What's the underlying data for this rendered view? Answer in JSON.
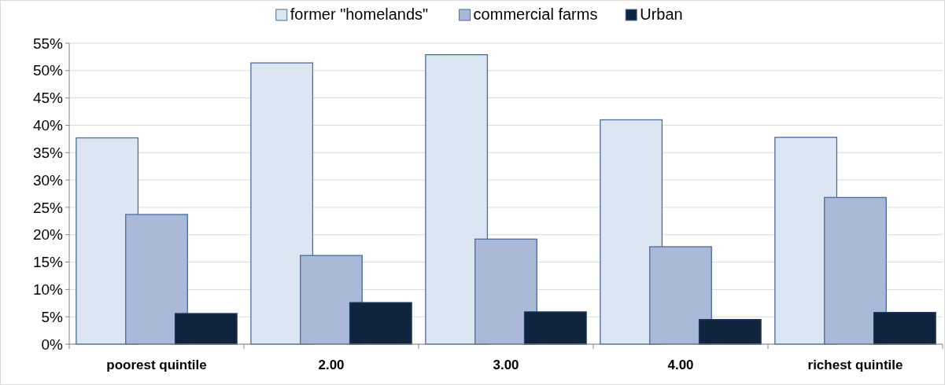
{
  "chart_data": {
    "type": "bar",
    "categories": [
      "poorest quintile",
      "2.00",
      "3.00",
      "4.00",
      "richest quintile"
    ],
    "series": [
      {
        "name": "former \"homelands\"",
        "color": "#dce6f2",
        "values": [
          37.7,
          51.4,
          52.9,
          41.0,
          37.8
        ]
      },
      {
        "name": "commercial farms",
        "color": "#aab9d7",
        "values": [
          23.7,
          16.2,
          19.2,
          17.8,
          26.8
        ]
      },
      {
        "name": "Urban",
        "color": "#10243e",
        "values": [
          5.6,
          7.6,
          5.9,
          4.5,
          5.8
        ]
      }
    ],
    "ylim": [
      0,
      55
    ],
    "yticks": [
      {
        "value": 0,
        "label": "0%"
      },
      {
        "value": 5,
        "label": "5%"
      },
      {
        "value": 10,
        "label": "10%"
      },
      {
        "value": 15,
        "label": "15%"
      },
      {
        "value": 20,
        "label": "20%"
      },
      {
        "value": 25,
        "label": "25%"
      },
      {
        "value": 30,
        "label": "30%"
      },
      {
        "value": 35,
        "label": "35%"
      },
      {
        "value": 40,
        "label": "40%"
      },
      {
        "value": 45,
        "label": "45%"
      },
      {
        "value": 50,
        "label": "50%"
      },
      {
        "value": 55,
        "label": "55%"
      }
    ],
    "grid": "y",
    "legend": "top"
  }
}
